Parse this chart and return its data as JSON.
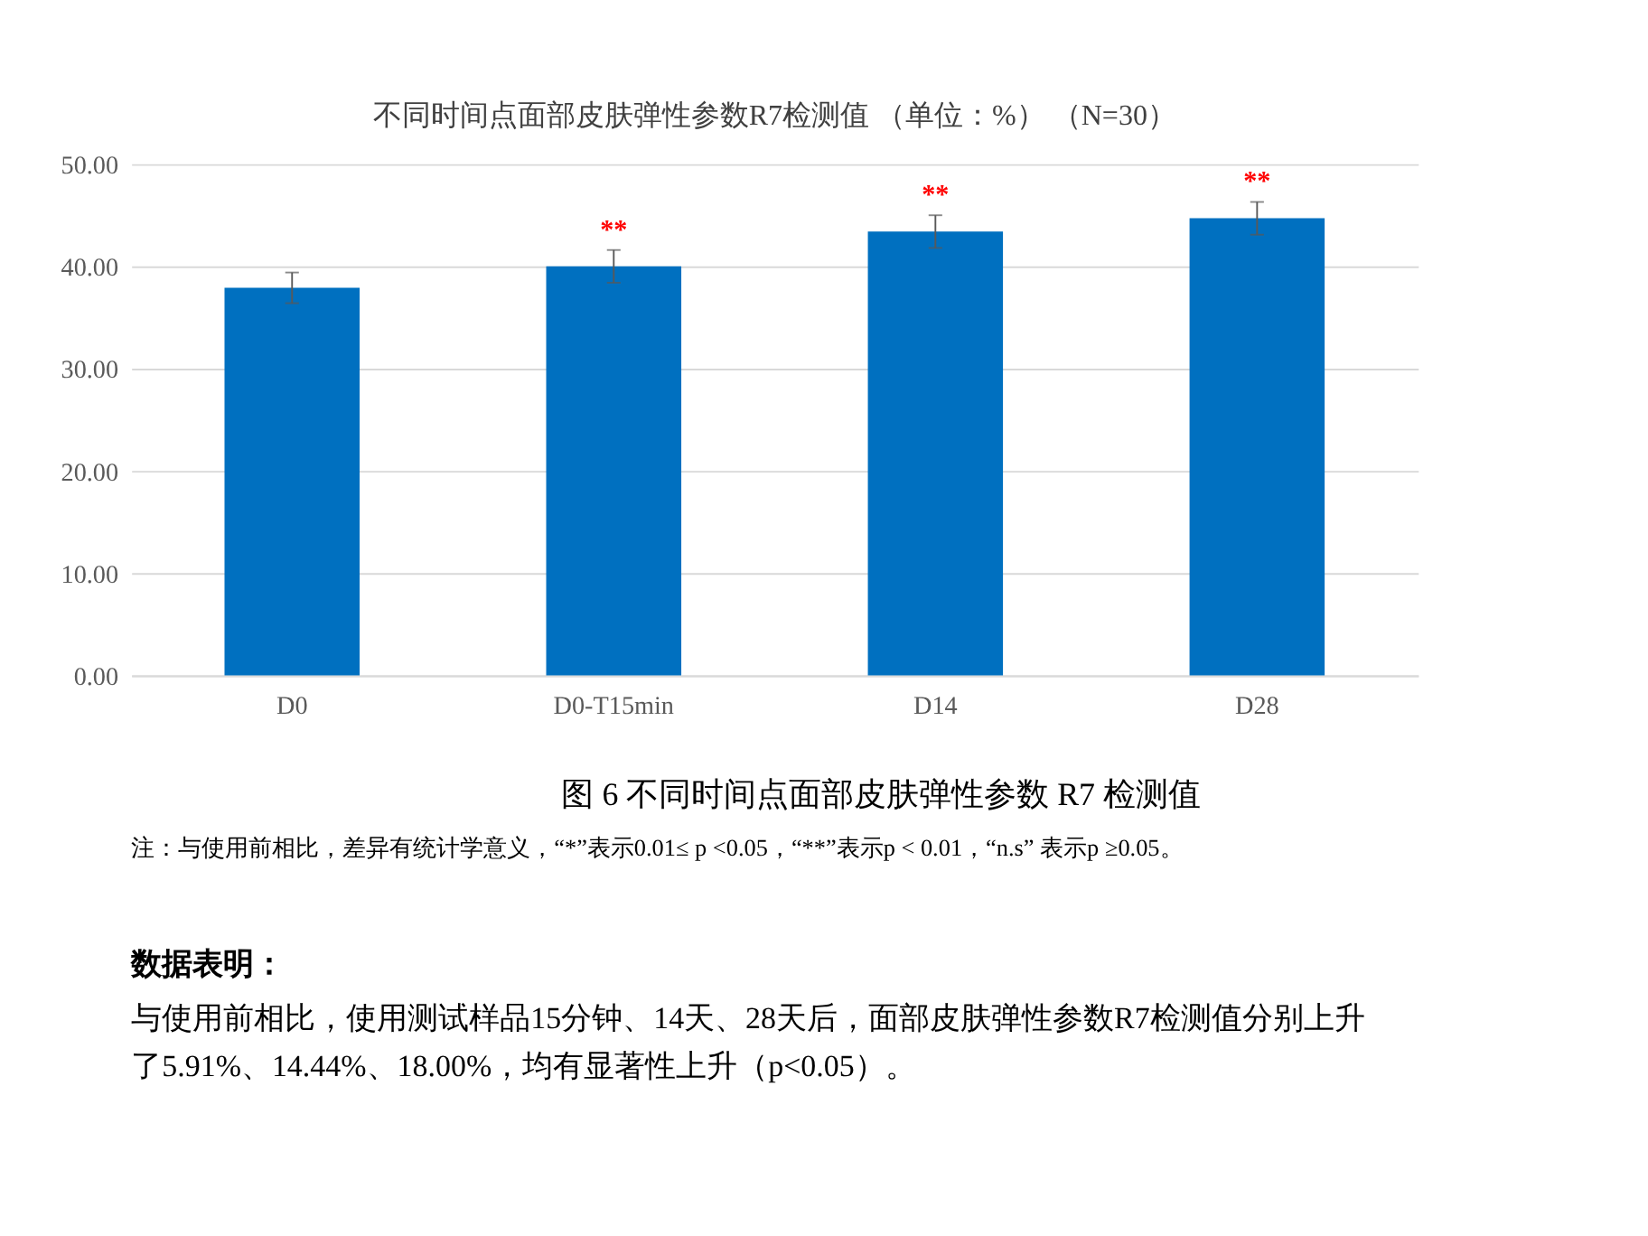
{
  "chart_data": {
    "type": "bar",
    "title": "不同时间点面部皮肤弹性参数R7检测值 （单位：%） （N=30）",
    "categories": [
      "D0",
      "D0-T15min",
      "D14",
      "D28"
    ],
    "values": [
      37.9,
      40.0,
      43.4,
      44.7
    ],
    "errors": [
      1.5,
      1.6,
      1.6,
      1.6
    ],
    "color": "#0070c0",
    "ylim": [
      0,
      50
    ],
    "yticks": [
      {
        "value": 0,
        "label": "0.00"
      },
      {
        "value": 10,
        "label": "10.00"
      },
      {
        "value": 20,
        "label": "20.00"
      },
      {
        "value": 30,
        "label": "30.00"
      },
      {
        "value": 40,
        "label": "40.00"
      },
      {
        "value": 50,
        "label": "50.00"
      }
    ],
    "grid": "y",
    "value_labels": [
      null,
      "**",
      "**",
      "**"
    ],
    "annotations": [
      "图 6 不同时间点面部皮肤弹性参数 R7 检测值",
      "注：与使用前相比，差异有统计学意义，“*”表示0.01≤ p <0.05，“**”表示p < 0.01，“n.s” 表示p ≥0.05。",
      "数据表明：",
      "与使用前相比，使用测试样品15分钟、14天、28天后，面部皮肤弹性参数R7检测值分别上升了5.91%、14.44%、18.00%，均有显著性上升（p<0.05）。"
    ]
  }
}
